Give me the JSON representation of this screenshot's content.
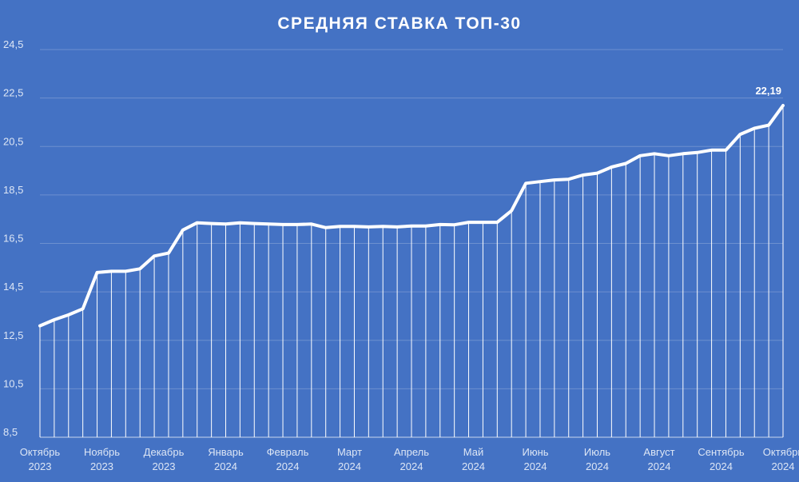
{
  "chart_data": {
    "type": "line",
    "title": "СРЕДНЯЯ СТАВКА ТОП-30",
    "ylim": [
      8.5,
      24.5
    ],
    "yticks": [
      "8,5",
      "10,5",
      "12,5",
      "14,5",
      "16,5",
      "18,5",
      "20,5",
      "22,5",
      "24,5"
    ],
    "grid": true,
    "legend": "none",
    "x_labels": [
      {
        "month": "Октябрь",
        "year": "2023"
      },
      {
        "month": "Ноябрь",
        "year": "2023"
      },
      {
        "month": "Декабрь",
        "year": "2023"
      },
      {
        "month": "Январь",
        "year": "2024"
      },
      {
        "month": "Февраль",
        "year": "2024"
      },
      {
        "month": "Март",
        "year": "2024"
      },
      {
        "month": "Апрель",
        "year": "2024"
      },
      {
        "month": "Май",
        "year": "2024"
      },
      {
        "month": "Июнь",
        "year": "2024"
      },
      {
        "month": "Июль",
        "year": "2024"
      },
      {
        "month": "Август",
        "year": "2024"
      },
      {
        "month": "Сентябрь",
        "year": "2024"
      },
      {
        "month": "Октябрь",
        "year": "2024"
      }
    ],
    "series": [
      {
        "values": [
          13.1,
          13.35,
          13.55,
          13.8,
          15.3,
          15.35,
          15.35,
          15.45,
          15.98,
          16.1,
          17.05,
          17.35,
          17.32,
          17.3,
          17.35,
          17.32,
          17.3,
          17.28,
          17.28,
          17.3,
          17.15,
          17.2,
          17.2,
          17.18,
          17.2,
          17.18,
          17.22,
          17.22,
          17.28,
          17.27,
          17.37,
          17.37,
          17.37,
          17.85,
          18.98,
          19.05,
          19.12,
          19.15,
          19.32,
          19.4,
          19.65,
          19.8,
          20.12,
          20.2,
          20.12,
          20.2,
          20.25,
          20.35,
          20.35,
          21.0,
          21.25,
          21.38,
          22.19
        ],
        "color": "#ffffff"
      }
    ],
    "last_value_label": "22,19"
  }
}
